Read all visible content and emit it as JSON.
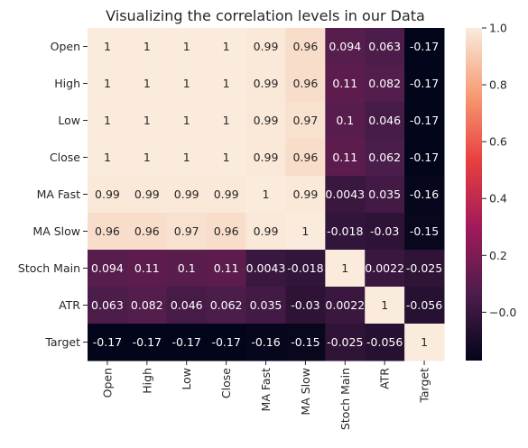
{
  "chart_data": {
    "type": "heatmap",
    "title": "Visualizing the correlation levels in our Data",
    "xlabel": "",
    "ylabel": "",
    "categories": [
      "Open",
      "High",
      "Low",
      "Close",
      "MA Fast",
      "MA Slow",
      "Stoch Main",
      "ATR",
      "Target"
    ],
    "values": [
      [
        1,
        1,
        1,
        1,
        0.99,
        0.96,
        0.094,
        0.063,
        -0.17
      ],
      [
        1,
        1,
        1,
        1,
        0.99,
        0.96,
        0.11,
        0.082,
        -0.17
      ],
      [
        1,
        1,
        1,
        1,
        0.99,
        0.97,
        0.1,
        0.046,
        -0.17
      ],
      [
        1,
        1,
        1,
        1,
        0.99,
        0.96,
        0.11,
        0.062,
        -0.17
      ],
      [
        0.99,
        0.99,
        0.99,
        0.99,
        1,
        0.99,
        0.0043,
        0.035,
        -0.16
      ],
      [
        0.96,
        0.96,
        0.97,
        0.96,
        0.99,
        1,
        -0.018,
        -0.03,
        -0.15
      ],
      [
        0.094,
        0.11,
        0.1,
        0.11,
        0.0043,
        -0.018,
        1,
        0.0022,
        -0.025
      ],
      [
        0.063,
        0.082,
        0.046,
        0.062,
        0.035,
        -0.03,
        0.0022,
        1,
        -0.056
      ],
      [
        -0.17,
        -0.17,
        -0.17,
        -0.17,
        -0.16,
        -0.15,
        -0.025,
        -0.056,
        1
      ]
    ],
    "annotations": [
      [
        "1",
        "1",
        "1",
        "1",
        "0.99",
        "0.96",
        "0.094",
        "0.063",
        "-0.17"
      ],
      [
        "1",
        "1",
        "1",
        "1",
        "0.99",
        "0.96",
        "0.11",
        "0.082",
        "-0.17"
      ],
      [
        "1",
        "1",
        "1",
        "1",
        "0.99",
        "0.97",
        "0.1",
        "0.046",
        "-0.17"
      ],
      [
        "1",
        "1",
        "1",
        "1",
        "0.99",
        "0.96",
        "0.11",
        "0.062",
        "-0.17"
      ],
      [
        "0.99",
        "0.99",
        "0.99",
        "0.99",
        "1",
        "0.99",
        "0.0043",
        "0.035",
        "-0.16"
      ],
      [
        "0.96",
        "0.96",
        "0.97",
        "0.96",
        "0.99",
        "1",
        "-0.018",
        "-0.03",
        "-0.15"
      ],
      [
        "0.094",
        "0.11",
        "0.1",
        "0.11",
        "0.0043",
        "-0.018",
        "1",
        "0.0022",
        "-0.025"
      ],
      [
        "0.063",
        "0.082",
        "0.046",
        "0.062",
        "0.035",
        "-0.03",
        "0.0022",
        "1",
        "-0.056"
      ],
      [
        "-0.17",
        "-0.17",
        "-0.17",
        "-0.17",
        "-0.16",
        "-0.15",
        "-0.025",
        "-0.056",
        "1"
      ]
    ],
    "color_range": [
      -0.17,
      1
    ],
    "colorbar_ticks": [
      -0.0,
      0.2,
      0.4,
      0.6,
      0.8,
      1.0
    ],
    "colorbar_tick_labels": [
      "−0.0",
      "0.2",
      "0.4",
      "0.6",
      "0.8",
      "1.0"
    ],
    "colormap": "rocket",
    "colormap_stops": [
      "#03051a",
      "#4c1d4b",
      "#a11a5b",
      "#e83f3f",
      "#f69c73",
      "#faebdd"
    ],
    "grid": false
  }
}
